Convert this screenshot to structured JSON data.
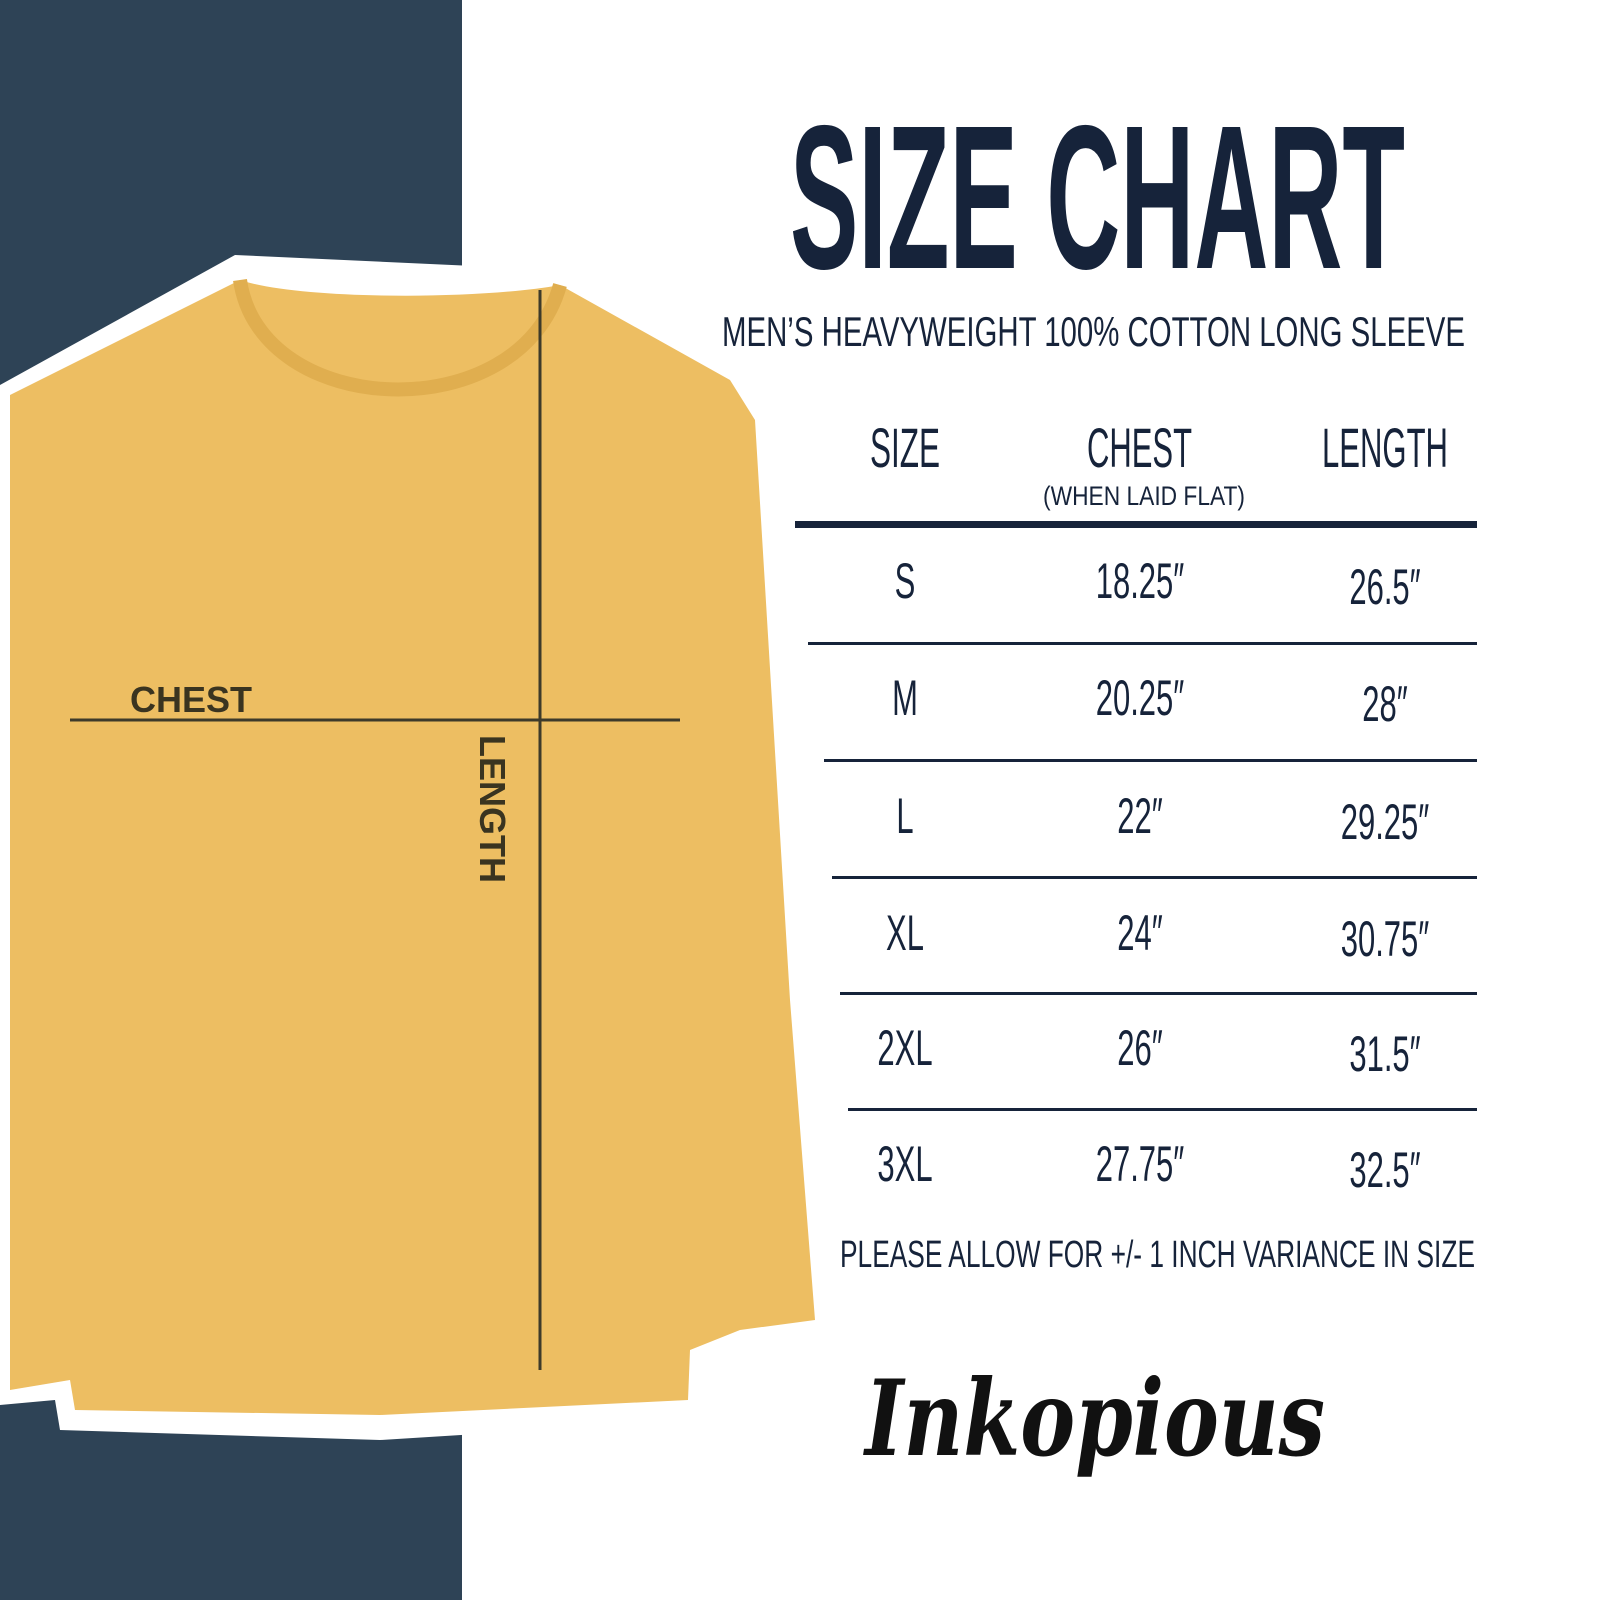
{
  "title": "SIZE CHART",
  "subtitle": "MEN’S HEAVYWEIGHT 100% COTTON LONG SLEEVE",
  "table": {
    "headers": {
      "size": "SIZE",
      "chest": "CHEST",
      "chest_note": "(WHEN LAID FLAT)",
      "length": "LENGTH"
    },
    "rows": [
      {
        "size": "S",
        "chest": "18.25″",
        "length": "26.5″"
      },
      {
        "size": "M",
        "chest": "20.25″",
        "length": "28″"
      },
      {
        "size": "L",
        "chest": "22″",
        "length": "29.25″"
      },
      {
        "size": "XL",
        "chest": "24″",
        "length": "30.75″"
      },
      {
        "size": "2XL",
        "chest": "26″",
        "length": "31.5″"
      },
      {
        "size": "3XL",
        "chest": "27.75″",
        "length": "32.5″"
      }
    ]
  },
  "note": "PLEASE ALLOW FOR +/- 1 INCH VARIANCE IN SIZE",
  "shirt_labels": {
    "chest": "CHEST",
    "length": "LENGTH"
  },
  "brand": "Inkopious",
  "colors": {
    "panel": "#2e4356",
    "shirt": "#edbe62",
    "text": "#16233a"
  }
}
